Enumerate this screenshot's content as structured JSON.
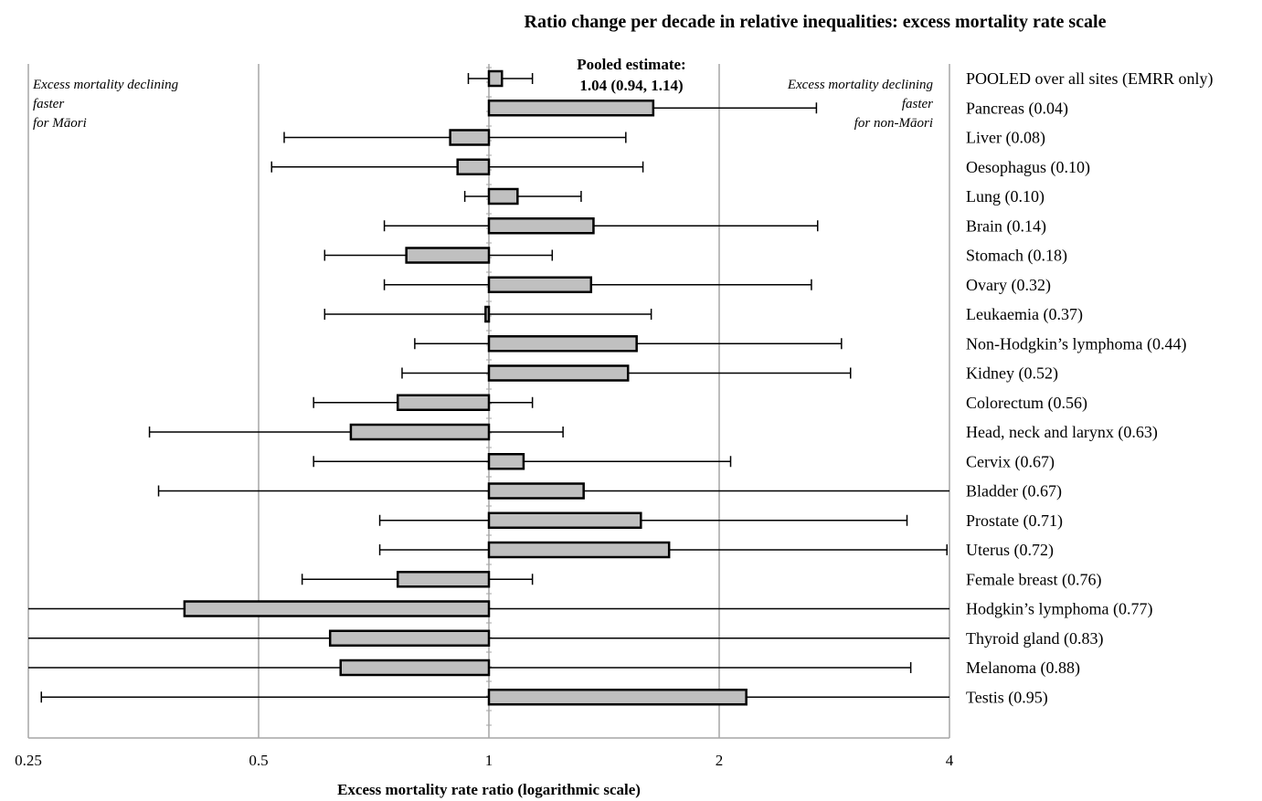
{
  "chart_data": {
    "type": "bar",
    "title": "Ratio change per decade in relative inequalities: excess mortality rate scale",
    "xlabel": "Excess mortality rate ratio (logarithmic scale)",
    "x_scale": "log2",
    "xlim": [
      0.25,
      4
    ],
    "xticks": [
      0.25,
      0.5,
      1,
      2,
      4
    ],
    "xtick_labels": [
      "0.25",
      "0.5",
      "1",
      "2",
      "4"
    ],
    "gridlines": [
      0.25,
      0.5,
      2,
      4
    ],
    "reference_line": 1,
    "orientation": "horizontal",
    "bar_color": "#c0c0c0",
    "annotations": {
      "left_note": [
        "Excess mortality declining",
        "faster",
        "for Māori"
      ],
      "right_note": [
        "Excess mortality declining",
        "faster",
        "for non-Māori"
      ],
      "pooled_text": [
        "Pooled estimate:",
        "1.04 (0.94, 1.14)"
      ]
    },
    "rows": [
      {
        "label": "POOLED over all sites (EMRR only)",
        "value": 1.04,
        "lower": 0.94,
        "upper": 1.14
      },
      {
        "label": "Pancreas (0.04)",
        "value": 1.64,
        "lower": 1.09,
        "upper": 2.68
      },
      {
        "label": "Liver (0.08)",
        "value": 0.89,
        "lower": 0.54,
        "upper": 1.51
      },
      {
        "label": "Oesophagus (0.10)",
        "value": 0.91,
        "lower": 0.52,
        "upper": 1.59
      },
      {
        "label": "Lung (0.10)",
        "value": 1.09,
        "lower": 0.93,
        "upper": 1.32
      },
      {
        "label": "Brain (0.14)",
        "value": 1.37,
        "lower": 0.73,
        "upper": 2.69
      },
      {
        "label": "Stomach (0.18)",
        "value": 0.78,
        "lower": 0.61,
        "upper": 1.21
      },
      {
        "label": "Ovary (0.32)",
        "value": 1.36,
        "lower": 0.73,
        "upper": 2.64
      },
      {
        "label": "Leukaemia (0.37)",
        "value": 0.99,
        "lower": 0.61,
        "upper": 1.63
      },
      {
        "label": "Non-Hodgkin’s lymphoma (0.44)",
        "value": 1.56,
        "lower": 0.8,
        "upper": 2.89
      },
      {
        "label": "Kidney (0.52)",
        "value": 1.52,
        "lower": 0.77,
        "upper": 2.97
      },
      {
        "label": "Colorectum (0.56)",
        "value": 0.76,
        "lower": 0.59,
        "upper": 1.14
      },
      {
        "label": "Head, neck and larynx (0.63)",
        "value": 0.66,
        "lower": 0.36,
        "upper": 1.25
      },
      {
        "label": "Cervix (0.67)",
        "value": 1.11,
        "lower": 0.59,
        "upper": 2.07
      },
      {
        "label": "Bladder (0.67)",
        "value": 1.33,
        "lower": 0.37,
        "upper": 4.0
      },
      {
        "label": "Prostate (0.71)",
        "value": 1.58,
        "lower": 0.72,
        "upper": 3.52
      },
      {
        "label": "Uterus (0.72)",
        "value": 1.72,
        "lower": 0.72,
        "upper": 3.97
      },
      {
        "label": "Female breast (0.76)",
        "value": 0.76,
        "lower": 0.57,
        "upper": 1.14
      },
      {
        "label": "Hodgkin’s lymphoma (0.77)",
        "value": 0.4,
        "lower": 0.25,
        "upper": 4.0
      },
      {
        "label": "Thyroid gland (0.83)",
        "value": 0.62,
        "lower": 0.25,
        "upper": 4.0
      },
      {
        "label": "Melanoma (0.88)",
        "value": 0.64,
        "lower": 0.25,
        "upper": 3.56
      },
      {
        "label": "Testis (0.95)",
        "value": 2.17,
        "lower": 0.26,
        "upper": 4.0
      }
    ]
  }
}
